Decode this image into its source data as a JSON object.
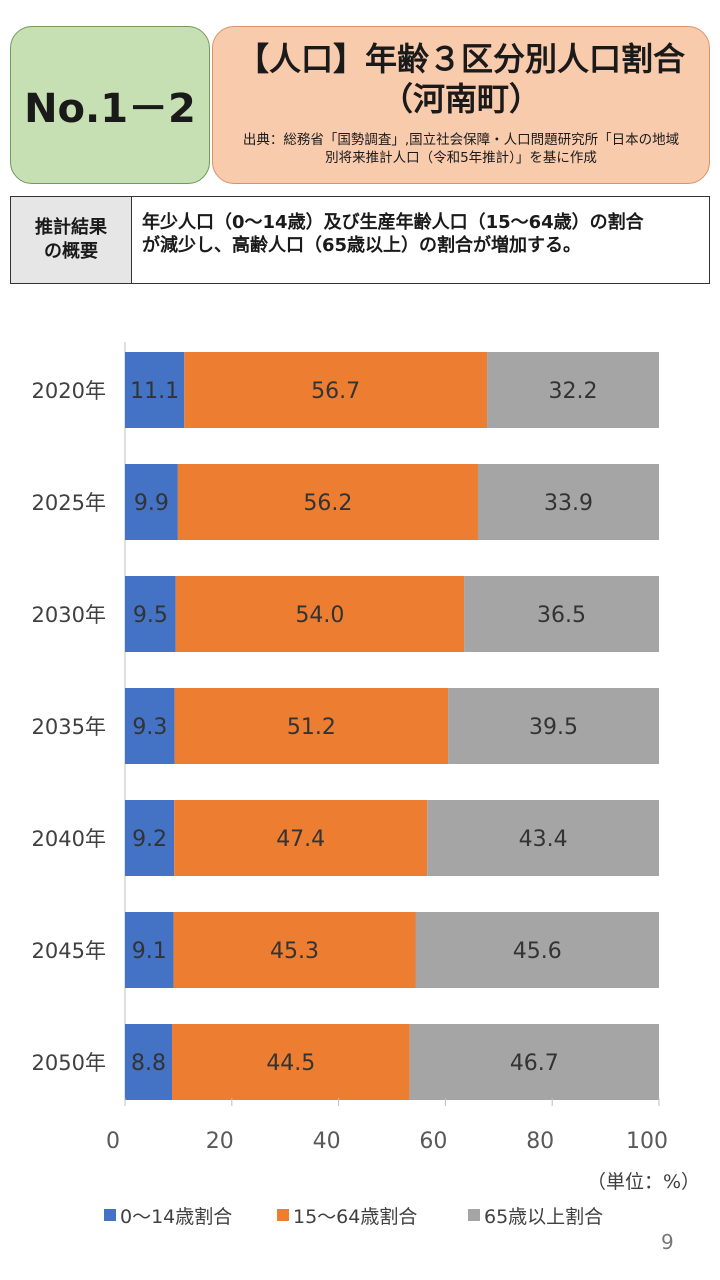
{
  "header": {
    "badge": "No.1－2",
    "title_line1": "【人口】年齢３区分別人口割合",
    "title_line2": "（河南町）",
    "source_line1": "出典：総務省「国勢調査」,国立社会保障・人口問題研究所「日本の地域",
    "source_line2": "別将来推計人口（令和5年推計）」を基に作成"
  },
  "summary": {
    "label_line1": "推計結果",
    "label_line2": "の概要",
    "text_line1": "年少人口（0～14歳）及び生産年齢人口（15～64歳）の割合",
    "text_line2": "が減少し、高齢人口（65歳以上）の割合が増加する。"
  },
  "chart_data": {
    "type": "bar",
    "orientation": "horizontal",
    "stacked": true,
    "categories": [
      "2020年",
      "2025年",
      "2030年",
      "2035年",
      "2040年",
      "2045年",
      "2050年"
    ],
    "series": [
      {
        "name": "0～14歳割合",
        "color": "#4472c4",
        "values": [
          11.1,
          9.9,
          9.5,
          9.3,
          9.2,
          9.1,
          8.8
        ]
      },
      {
        "name": "15～64歳割合",
        "color": "#ed7d31",
        "values": [
          56.7,
          56.2,
          54.0,
          51.2,
          47.4,
          45.3,
          44.5
        ]
      },
      {
        "name": "65歳以上割合",
        "color": "#a5a5a5",
        "values": [
          32.2,
          33.9,
          36.5,
          39.5,
          43.4,
          45.6,
          46.7
        ]
      }
    ],
    "xlim": [
      0,
      100
    ],
    "xticks": [
      "0",
      "20",
      "40",
      "60",
      "80",
      "100"
    ],
    "unit_label": "（単位：%）",
    "legend_position": "bottom"
  },
  "page_number": "9"
}
